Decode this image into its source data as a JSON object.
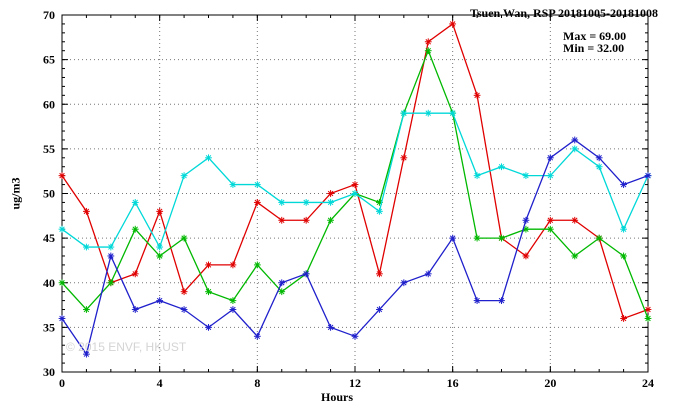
{
  "header": {
    "title": "Tsuen Wan, RSP 20181005-20181008"
  },
  "stats": {
    "max_label": "Max = 69.00",
    "min_label": "Min = 32.00"
  },
  "watermark": "© 2015 ENVF, HKUST",
  "chart_data": {
    "type": "line",
    "title": "Tsuen Wan, RSP 20181005-20181008",
    "xlabel": "Hours",
    "ylabel": "ug/m3",
    "xlim": [
      0,
      24
    ],
    "ylim": [
      30,
      70
    ],
    "x_major_ticks": [
      0,
      4,
      8,
      12,
      16,
      20,
      24
    ],
    "y_major_ticks": [
      30,
      35,
      40,
      45,
      50,
      55,
      60,
      65,
      70
    ],
    "x_minor_step": 1,
    "y_minor_step": 1,
    "grid": "dotted",
    "legend_position": "none",
    "marker": "asterisk",
    "max": 69.0,
    "min": 32.0,
    "x": [
      0,
      1,
      2,
      3,
      4,
      5,
      6,
      7,
      8,
      9,
      10,
      11,
      12,
      13,
      14,
      15,
      16,
      17,
      18,
      19,
      20,
      21,
      22,
      23,
      24
    ],
    "series": [
      {
        "name": "day1-red",
        "color": "#e00000",
        "values": [
          52,
          48,
          40,
          41,
          48,
          39,
          42,
          42,
          49,
          47,
          47,
          50,
          51,
          41,
          54,
          67,
          69,
          61,
          45,
          43,
          47,
          47,
          45,
          36,
          37
        ]
      },
      {
        "name": "day2-green",
        "color": "#00b800",
        "values": [
          40,
          37,
          40,
          46,
          43,
          45,
          39,
          38,
          42,
          39,
          41,
          47,
          50,
          49,
          59,
          66,
          59,
          45,
          45,
          46,
          46,
          43,
          45,
          43,
          36
        ]
      },
      {
        "name": "day3-cyan",
        "color": "#00d8d8",
        "values": [
          46,
          44,
          44,
          49,
          44,
          52,
          54,
          51,
          51,
          49,
          49,
          49,
          50,
          48,
          59,
          59,
          59,
          52,
          53,
          52,
          52,
          55,
          53,
          46,
          52
        ]
      },
      {
        "name": "day4-blue",
        "color": "#2020cc",
        "values": [
          36,
          32,
          43,
          37,
          38,
          37,
          35,
          37,
          34,
          40,
          41,
          35,
          34,
          37,
          40,
          41,
          45,
          38,
          38,
          47,
          54,
          56,
          54,
          51,
          52
        ]
      }
    ]
  }
}
